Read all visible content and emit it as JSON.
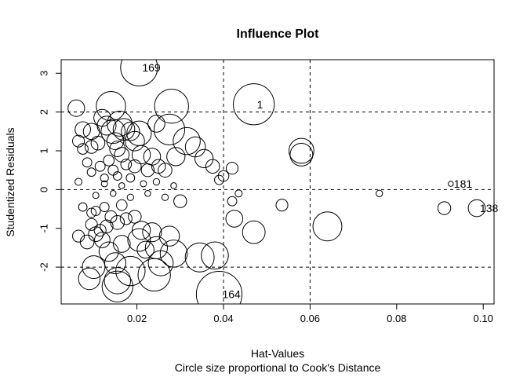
{
  "chart_data": {
    "type": "scatter",
    "title": "Influence Plot",
    "xlabel": "Hat-Values",
    "ylabel": "Studentized Residuals",
    "subtitle": "Circle size proportional to Cook's Distance",
    "xlim": [
      0.0025,
      0.1025
    ],
    "ylim": [
      -2.95,
      3.35
    ],
    "x_ticks": [
      0.02,
      0.04,
      0.06,
      0.08,
      0.1
    ],
    "x_tick_labels": [
      "0.02",
      "0.04",
      "0.06",
      "0.08",
      "0.10"
    ],
    "y_ticks": [
      -2,
      -1,
      0,
      1,
      2,
      3
    ],
    "y_tick_labels": [
      "-2",
      "-1",
      "0",
      "1",
      "2",
      "3"
    ],
    "hlines": [
      -2,
      0,
      2
    ],
    "vlines": [
      0.04,
      0.06
    ],
    "grid": false,
    "legend": "none",
    "labeled_points": [
      {
        "label": "169",
        "x": 0.0205,
        "y": 3.15,
        "cook": 0.06
      },
      {
        "label": "1",
        "x": 0.047,
        "y": 2.2,
        "cook": 0.075
      },
      {
        "label": "164",
        "x": 0.039,
        "y": -2.7,
        "cook": 0.095
      },
      {
        "label": "181",
        "x": 0.0925,
        "y": 0.15,
        "cook": 0.0002
      },
      {
        "label": "138",
        "x": 0.0985,
        "y": -0.48,
        "cook": 0.01
      }
    ],
    "points": [
      {
        "x": 0.006,
        "y": 2.1,
        "cook": 0.0095
      },
      {
        "x": 0.0075,
        "y": 1.55,
        "cook": 0.008
      },
      {
        "x": 0.0065,
        "y": 1.25,
        "cook": 0.004
      },
      {
        "x": 0.0075,
        "y": 1.05,
        "cook": 0.003
      },
      {
        "x": 0.0095,
        "y": 1.5,
        "cook": 0.009
      },
      {
        "x": 0.0095,
        "y": 1.1,
        "cook": 0.005
      },
      {
        "x": 0.011,
        "y": 1.2,
        "cook": 0.006
      },
      {
        "x": 0.012,
        "y": 1.85,
        "cook": 0.01
      },
      {
        "x": 0.013,
        "y": 1.65,
        "cook": 0.013
      },
      {
        "x": 0.014,
        "y": 2.15,
        "cook": 0.036
      },
      {
        "x": 0.0145,
        "y": 1.5,
        "cook": 0.023
      },
      {
        "x": 0.015,
        "y": 1.25,
        "cook": 0.01
      },
      {
        "x": 0.0155,
        "y": 1.05,
        "cook": 0.008
      },
      {
        "x": 0.016,
        "y": 1.7,
        "cook": 0.025
      },
      {
        "x": 0.017,
        "y": 1.55,
        "cook": 0.018
      },
      {
        "x": 0.0165,
        "y": 0.9,
        "cook": 0.007
      },
      {
        "x": 0.0185,
        "y": 1.5,
        "cook": 0.012
      },
      {
        "x": 0.0195,
        "y": 0.6,
        "cook": 0.005
      },
      {
        "x": 0.0205,
        "y": 1.45,
        "cook": 0.024
      },
      {
        "x": 0.021,
        "y": 0.9,
        "cook": 0.012
      },
      {
        "x": 0.0235,
        "y": 0.85,
        "cook": 0.01
      },
      {
        "x": 0.025,
        "y": 0.6,
        "cook": 0.006
      },
      {
        "x": 0.0265,
        "y": 0.5,
        "cook": 0.006
      },
      {
        "x": 0.028,
        "y": 2.15,
        "cook": 0.05
      },
      {
        "x": 0.0275,
        "y": 1.55,
        "cook": 0.04
      },
      {
        "x": 0.029,
        "y": 0.85,
        "cook": 0.012
      },
      {
        "x": 0.0315,
        "y": 1.25,
        "cook": 0.03
      },
      {
        "x": 0.0335,
        "y": 1.1,
        "cook": 0.015
      },
      {
        "x": 0.0355,
        "y": 0.8,
        "cook": 0.012
      },
      {
        "x": 0.0375,
        "y": 0.6,
        "cook": 0.006
      },
      {
        "x": 0.042,
        "y": 0.55,
        "cook": 0.004
      },
      {
        "x": 0.04,
        "y": 0.35,
        "cook": 0.003
      },
      {
        "x": 0.039,
        "y": 0.25,
        "cook": 0.002
      },
      {
        "x": 0.058,
        "y": 1.0,
        "cook": 0.025
      },
      {
        "x": 0.058,
        "y": 0.9,
        "cook": 0.02
      },
      {
        "x": 0.0435,
        "y": -0.1,
        "cook": 0.0008
      },
      {
        "x": 0.042,
        "y": -0.3,
        "cook": 0.002
      },
      {
        "x": 0.0535,
        "y": -0.4,
        "cook": 0.004
      },
      {
        "x": 0.0425,
        "y": -0.75,
        "cook": 0.01
      },
      {
        "x": 0.047,
        "y": -1.1,
        "cook": 0.02
      },
      {
        "x": 0.064,
        "y": -0.95,
        "cook": 0.035
      },
      {
        "x": 0.076,
        "y": -0.1,
        "cook": 0.0006
      },
      {
        "x": 0.091,
        "y": -0.48,
        "cook": 0.005
      },
      {
        "x": 0.0065,
        "y": -1.2,
        "cook": 0.004
      },
      {
        "x": 0.0085,
        "y": -1.35,
        "cook": 0.006
      },
      {
        "x": 0.0105,
        "y": -1.15,
        "cook": 0.007
      },
      {
        "x": 0.01,
        "y": -2.0,
        "cook": 0.02
      },
      {
        "x": 0.009,
        "y": -2.3,
        "cook": 0.018
      },
      {
        "x": 0.012,
        "y": -1.3,
        "cook": 0.008
      },
      {
        "x": 0.0135,
        "y": -1.6,
        "cook": 0.014
      },
      {
        "x": 0.0155,
        "y": -2.5,
        "cook": 0.04
      },
      {
        "x": 0.0155,
        "y": -2.35,
        "cook": 0.028
      },
      {
        "x": 0.015,
        "y": -1.9,
        "cook": 0.017
      },
      {
        "x": 0.0185,
        "y": -2.1,
        "cook": 0.036
      },
      {
        "x": 0.0205,
        "y": -1.3,
        "cook": 0.02
      },
      {
        "x": 0.021,
        "y": -1.05,
        "cook": 0.012
      },
      {
        "x": 0.0235,
        "y": -1.1,
        "cook": 0.013
      },
      {
        "x": 0.0245,
        "y": -1.5,
        "cook": 0.019
      },
      {
        "x": 0.024,
        "y": -2.2,
        "cook": 0.045
      },
      {
        "x": 0.0255,
        "y": -1.9,
        "cook": 0.025
      },
      {
        "x": 0.0275,
        "y": -1.2,
        "cook": 0.015
      },
      {
        "x": 0.0285,
        "y": -1.65,
        "cook": 0.03
      },
      {
        "x": 0.03,
        "y": -0.3,
        "cook": 0.005
      },
      {
        "x": 0.0345,
        "y": -1.75,
        "cook": 0.035
      },
      {
        "x": 0.038,
        "y": -1.7,
        "cook": 0.03
      },
      {
        "x": 0.0065,
        "y": 0.2,
        "cook": 0.0008
      },
      {
        "x": 0.0075,
        "y": -0.45,
        "cook": 0.0015
      },
      {
        "x": 0.0095,
        "y": -0.6,
        "cook": 0.002
      },
      {
        "x": 0.0105,
        "y": -0.55,
        "cook": 0.002
      },
      {
        "x": 0.0125,
        "y": -0.45,
        "cook": 0.002
      },
      {
        "x": 0.013,
        "y": -0.95,
        "cook": 0.005
      },
      {
        "x": 0.014,
        "y": -0.7,
        "cook": 0.004
      },
      {
        "x": 0.0155,
        "y": -0.85,
        "cook": 0.006
      },
      {
        "x": 0.0165,
        "y": -0.4,
        "cook": 0.003
      },
      {
        "x": 0.0175,
        "y": -0.75,
        "cook": 0.004
      },
      {
        "x": 0.0195,
        "y": -0.7,
        "cook": 0.005
      },
      {
        "x": 0.0085,
        "y": 0.7,
        "cook": 0.002
      },
      {
        "x": 0.0095,
        "y": 0.45,
        "cook": 0.0015
      },
      {
        "x": 0.0115,
        "y": 0.6,
        "cook": 0.0025
      },
      {
        "x": 0.0125,
        "y": 0.3,
        "cook": 0.0012
      },
      {
        "x": 0.0135,
        "y": 0.75,
        "cook": 0.003
      },
      {
        "x": 0.0145,
        "y": 0.5,
        "cook": 0.0025
      },
      {
        "x": 0.0155,
        "y": 0.35,
        "cook": 0.0015
      },
      {
        "x": 0.0175,
        "y": 0.65,
        "cook": 0.003
      },
      {
        "x": 0.0185,
        "y": 0.3,
        "cook": 0.0015
      },
      {
        "x": 0.0105,
        "y": -0.15,
        "cook": 0.0005
      },
      {
        "x": 0.0125,
        "y": 0.15,
        "cook": 0.0005
      },
      {
        "x": 0.0145,
        "y": -0.1,
        "cook": 0.0004
      },
      {
        "x": 0.0165,
        "y": 0.1,
        "cook": 0.0004
      },
      {
        "x": 0.0185,
        "y": -0.2,
        "cook": 0.0006
      },
      {
        "x": 0.0215,
        "y": 0.15,
        "cook": 0.0005
      },
      {
        "x": 0.0225,
        "y": -0.1,
        "cook": 0.0004
      },
      {
        "x": 0.0245,
        "y": 0.2,
        "cook": 0.0006
      },
      {
        "x": 0.0265,
        "y": -0.2,
        "cook": 0.0006
      },
      {
        "x": 0.0285,
        "y": 0.1,
        "cook": 0.0004
      },
      {
        "x": 0.0095,
        "y": -0.9,
        "cook": 0.004
      },
      {
        "x": 0.0115,
        "y": -1.05,
        "cook": 0.004
      },
      {
        "x": 0.0165,
        "y": -1.4,
        "cook": 0.01
      },
      {
        "x": 0.022,
        "y": -1.55,
        "cook": 0.01
      },
      {
        "x": 0.0195,
        "y": 1.25,
        "cook": 0.014
      },
      {
        "x": 0.0225,
        "y": 0.5,
        "cook": 0.005
      },
      {
        "x": 0.0245,
        "y": 1.7,
        "cook": 0.01
      }
    ]
  }
}
